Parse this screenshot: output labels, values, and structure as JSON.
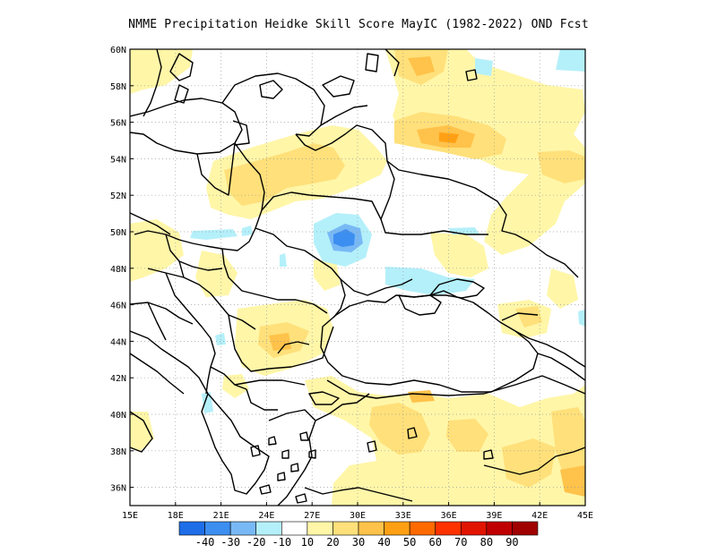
{
  "title": "NMME  Precipitation Heidke Skill Score MayIC (1982-2022) OND Fcst",
  "map": {
    "lon_ticks": [
      "15E",
      "18E",
      "21E",
      "24E",
      "27E",
      "30E",
      "33E",
      "36E",
      "39E",
      "42E",
      "45E"
    ],
    "lat_ticks": [
      "36N",
      "38N",
      "40N",
      "42N",
      "44N",
      "46N",
      "48N",
      "50N",
      "52N",
      "54N",
      "56N",
      "58N",
      "60N"
    ],
    "lon_range": [
      15,
      45
    ],
    "lat_range": [
      35,
      60
    ],
    "grid": true
  },
  "colorbar": {
    "labels": [
      "-40",
      "-30",
      "-20",
      "-10",
      "10",
      "20",
      "30",
      "40",
      "50",
      "60",
      "70",
      "80",
      "90"
    ],
    "colors": [
      "#1e6ee8",
      "#3c8ef0",
      "#78b9f5",
      "#b4f0fa",
      "#ffffff",
      "#fff6a8",
      "#ffe07a",
      "#ffc24a",
      "#ffa014",
      "#ff6a00",
      "#ff3200",
      "#e11400",
      "#c00000",
      "#a00000"
    ]
  },
  "legend_colors": {
    "c10_20": "#fff6a8",
    "c20_30": "#ffe07a",
    "c30_40": "#ffc24a",
    "c40_50": "#ffa014",
    "neg10": "#b4f0fa",
    "neg20": "#78b9f5",
    "neg30": "#3c8ef0"
  }
}
